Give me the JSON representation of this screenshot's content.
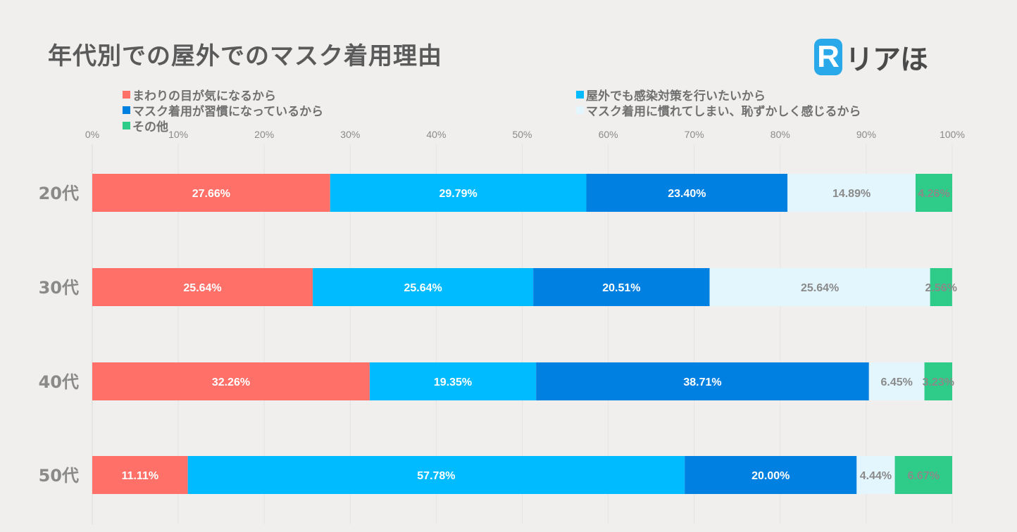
{
  "chart_data": {
    "type": "bar",
    "orientation": "horizontal",
    "stacked": true,
    "title": "年代別での屋外でのマスク着用理由",
    "categories": [
      "20代",
      "30代",
      "40代",
      "50代"
    ],
    "xlim": [
      0,
      100
    ],
    "xticks": [
      "0%",
      "10%",
      "20%",
      "30%",
      "40%",
      "50%",
      "60%",
      "70%",
      "80%",
      "90%",
      "100%"
    ],
    "grid": true,
    "series": [
      {
        "name": "まわりの目が気になるから",
        "color": "#ff7068",
        "label_color": "#ffffff",
        "values": [
          27.66,
          25.64,
          32.26,
          11.11
        ]
      },
      {
        "name": "屋外でも感染対策を行いたいから",
        "color": "#00bbff",
        "label_color": "#ffffff",
        "values": [
          29.79,
          25.64,
          19.35,
          57.78
        ]
      },
      {
        "name": "マスク着用が習慣になっているから",
        "color": "#0080e0",
        "label_color": "#ffffff",
        "values": [
          23.4,
          20.51,
          38.71,
          20.0
        ]
      },
      {
        "name": "マスク着用に慣れてしまい、恥ずかしく感じるから",
        "color": "#e3f5fd",
        "label_color": "#8a8a8a",
        "values": [
          14.89,
          25.64,
          6.45,
          4.44
        ]
      },
      {
        "name": "その他",
        "color": "#2ecc88",
        "label_color": "#8a8a8a",
        "values": [
          4.26,
          2.56,
          3.23,
          6.67
        ]
      }
    ]
  },
  "logo": {
    "mark": "R",
    "text": "リアほ"
  }
}
